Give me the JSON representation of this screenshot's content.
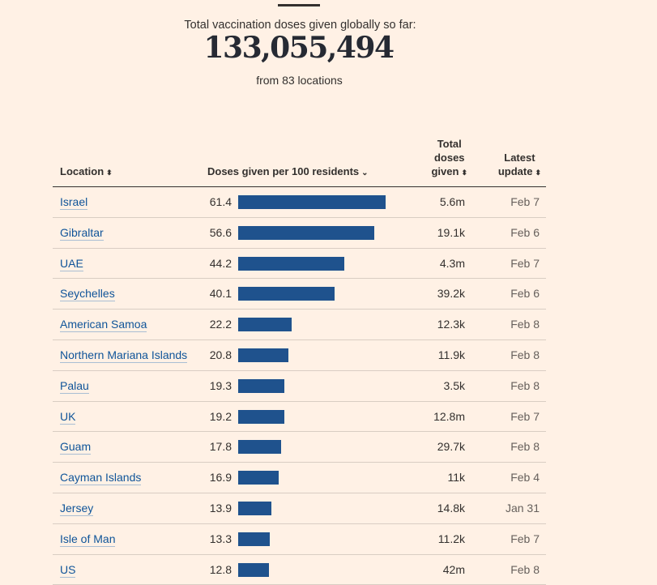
{
  "header": {
    "label": "Total vaccination doses given globally so far:",
    "total": "133,055,494",
    "sublabel": "from 83 locations"
  },
  "table": {
    "columns": {
      "location": "Location",
      "doses_per_100": "Doses given per 100 residents",
      "total_line1": "Total",
      "total_line2": "doses",
      "total_line3": "given",
      "latest_line1": "Latest",
      "latest_line2": "update"
    },
    "icons": {
      "sort": "sort-updown-icon",
      "active_sort": "chevron-down-icon"
    }
  },
  "colors": {
    "bar": "#1f528d",
    "link": "#0f5499",
    "background": "#fff1e5"
  },
  "chart_data": {
    "type": "bar",
    "title": "Doses given per 100 residents",
    "xlim": [
      0,
      64
    ],
    "categories": [
      "Israel",
      "Gibraltar",
      "UAE",
      "Seychelles",
      "American Samoa",
      "Northern Mariana Islands",
      "Palau",
      "UK",
      "Guam",
      "Cayman Islands",
      "Jersey",
      "Isle of Man",
      "US"
    ],
    "values": [
      61.4,
      56.6,
      44.2,
      40.1,
      22.2,
      20.8,
      19.3,
      19.2,
      17.8,
      16.9,
      13.9,
      13.3,
      12.8
    ],
    "values_label": [
      "61.4",
      "56.6",
      "44.2",
      "40.1",
      "22.2",
      "20.8",
      "19.3",
      "19.2",
      "17.8",
      "16.9",
      "13.9",
      "13.3",
      "12.8"
    ],
    "total_doses": [
      "5.6m",
      "19.1k",
      "4.3m",
      "39.2k",
      "12.3k",
      "11.9k",
      "3.5k",
      "12.8m",
      "29.7k",
      "11k",
      "14.8k",
      "11.2k",
      "42m"
    ],
    "latest_update": [
      "Feb 7",
      "Feb 6",
      "Feb 7",
      "Feb 6",
      "Feb 8",
      "Feb 8",
      "Feb 8",
      "Feb 7",
      "Feb 8",
      "Feb 4",
      "Jan 31",
      "Feb 7",
      "Feb 8"
    ]
  }
}
